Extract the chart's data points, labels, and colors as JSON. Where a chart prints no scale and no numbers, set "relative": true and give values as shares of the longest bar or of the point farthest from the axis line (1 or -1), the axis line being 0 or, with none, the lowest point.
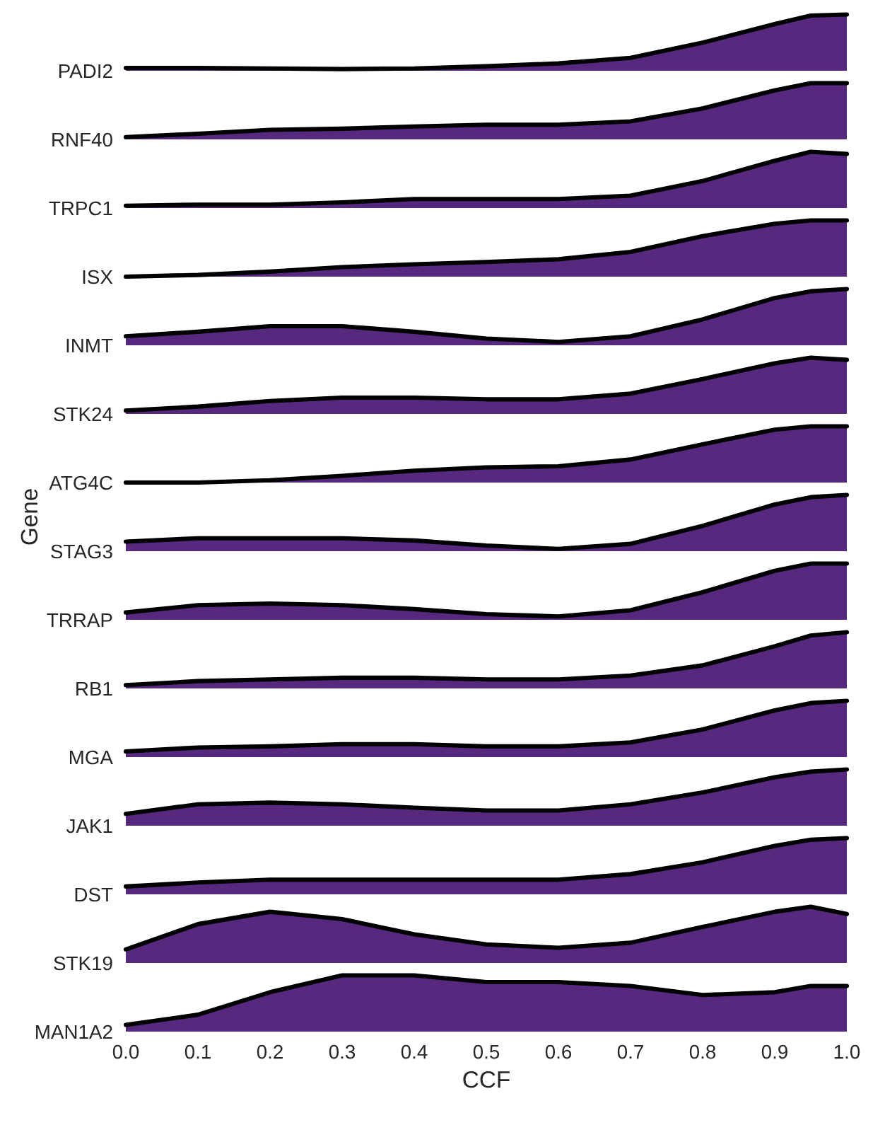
{
  "chart_data": [
    {
      "type": "area",
      "relative": true,
      "x": [
        0,
        0.1,
        0.2,
        0.3,
        0.4,
        0.5,
        0.6,
        0.7,
        0.8,
        0.9,
        0.95,
        1.0
      ],
      "xlim": [
        0,
        1
      ],
      "tick_labels": false,
      "series": [
        {
          "name": "PADI2",
          "color": "#56287e",
          "values": [
            0.05,
            0.05,
            0.04,
            0.03,
            0.04,
            0.08,
            0.13,
            0.23,
            0.5,
            0.83,
            0.98,
            1.0
          ]
        }
      ]
    },
    {
      "type": "area",
      "relative": true,
      "x": [
        0,
        0.1,
        0.2,
        0.3,
        0.4,
        0.5,
        0.6,
        0.7,
        0.8,
        0.9,
        0.95,
        1.0
      ],
      "xlim": [
        0,
        1
      ],
      "tick_labels": false,
      "series": [
        {
          "name": "RNF40",
          "color": "#56287e",
          "values": [
            0.04,
            0.1,
            0.17,
            0.19,
            0.23,
            0.26,
            0.26,
            0.32,
            0.55,
            0.87,
            1,
            1
          ]
        }
      ]
    },
    {
      "type": "area",
      "relative": true,
      "x": [
        0,
        0.1,
        0.2,
        0.3,
        0.4,
        0.5,
        0.6,
        0.7,
        0.8,
        0.9,
        0.95,
        1.0
      ],
      "xlim": [
        0,
        1
      ],
      "tick_labels": false,
      "series": [
        {
          "name": "TRPC1",
          "color": "#56287e",
          "values": [
            0.04,
            0.06,
            0.06,
            0.1,
            0.16,
            0.16,
            0.16,
            0.22,
            0.48,
            0.84,
            1,
            0.96
          ]
        }
      ]
    },
    {
      "type": "area",
      "relative": true,
      "x": [
        0,
        0.1,
        0.2,
        0.3,
        0.4,
        0.5,
        0.6,
        0.7,
        0.8,
        0.9,
        0.95,
        1.0
      ],
      "xlim": [
        0,
        1
      ],
      "tick_labels": false,
      "series": [
        {
          "name": "ISX",
          "color": "#56287e",
          "values": [
            0,
            0.03,
            0.09,
            0.17,
            0.22,
            0.26,
            0.31,
            0.44,
            0.72,
            0.94,
            1,
            1
          ]
        }
      ]
    },
    {
      "type": "area",
      "relative": true,
      "x": [
        0,
        0.1,
        0.2,
        0.3,
        0.4,
        0.5,
        0.6,
        0.7,
        0.8,
        0.9,
        0.95,
        1.0
      ],
      "xlim": [
        0,
        1
      ],
      "tick_labels": false,
      "series": [
        {
          "name": "INMT",
          "color": "#56287e",
          "values": [
            0.16,
            0.24,
            0.34,
            0.34,
            0.24,
            0.12,
            0.06,
            0.16,
            0.46,
            0.84,
            0.96,
            1
          ]
        }
      ]
    },
    {
      "type": "area",
      "relative": true,
      "x": [
        0,
        0.1,
        0.2,
        0.3,
        0.4,
        0.5,
        0.6,
        0.7,
        0.8,
        0.9,
        0.95,
        1.0
      ],
      "xlim": [
        0,
        1
      ],
      "tick_labels": false,
      "series": [
        {
          "name": "STK24",
          "color": "#56287e",
          "values": [
            0.06,
            0.13,
            0.23,
            0.29,
            0.29,
            0.26,
            0.26,
            0.36,
            0.62,
            0.9,
            1,
            0.96
          ]
        }
      ]
    },
    {
      "type": "area",
      "relative": true,
      "x": [
        0,
        0.1,
        0.2,
        0.3,
        0.4,
        0.5,
        0.6,
        0.7,
        0.8,
        0.9,
        0.95,
        1.0
      ],
      "xlim": [
        0,
        1
      ],
      "tick_labels": false,
      "series": [
        {
          "name": "ATG4C",
          "color": "#56287e",
          "values": [
            0,
            0,
            0.04,
            0.12,
            0.21,
            0.27,
            0.29,
            0.41,
            0.68,
            0.94,
            1,
            1
          ]
        }
      ]
    },
    {
      "type": "area",
      "relative": true,
      "ylabel": "Gene",
      "x": [
        0,
        0.1,
        0.2,
        0.3,
        0.4,
        0.5,
        0.6,
        0.7,
        0.8,
        0.9,
        0.95,
        1.0
      ],
      "xlim": [
        0,
        1
      ],
      "tick_labels": false,
      "series": [
        {
          "name": "STAG3",
          "color": "#56287e",
          "values": [
            0.17,
            0.23,
            0.23,
            0.23,
            0.19,
            0.1,
            0.04,
            0.13,
            0.45,
            0.83,
            0.96,
            1
          ]
        }
      ]
    },
    {
      "type": "area",
      "relative": true,
      "x": [
        0,
        0.1,
        0.2,
        0.3,
        0.4,
        0.5,
        0.6,
        0.7,
        0.8,
        0.9,
        0.95,
        1.0
      ],
      "xlim": [
        0,
        1
      ],
      "tick_labels": false,
      "series": [
        {
          "name": "TRRAP",
          "color": "#56287e",
          "values": [
            0.13,
            0.26,
            0.29,
            0.26,
            0.19,
            0.1,
            0.06,
            0.17,
            0.49,
            0.87,
            1,
            1
          ]
        }
      ]
    },
    {
      "type": "area",
      "relative": true,
      "x": [
        0,
        0.1,
        0.2,
        0.3,
        0.4,
        0.5,
        0.6,
        0.7,
        0.8,
        0.9,
        0.95,
        1.0
      ],
      "xlim": [
        0,
        1
      ],
      "tick_labels": false,
      "series": [
        {
          "name": "RB1",
          "color": "#56287e",
          "values": [
            0.06,
            0.13,
            0.16,
            0.19,
            0.19,
            0.16,
            0.16,
            0.23,
            0.41,
            0.75,
            0.94,
            1
          ]
        }
      ]
    },
    {
      "type": "area",
      "relative": true,
      "x": [
        0,
        0.1,
        0.2,
        0.3,
        0.4,
        0.5,
        0.6,
        0.7,
        0.8,
        0.9,
        0.95,
        1.0
      ],
      "xlim": [
        0,
        1
      ],
      "tick_labels": false,
      "series": [
        {
          "name": "MGA",
          "color": "#56287e",
          "values": [
            0.1,
            0.17,
            0.19,
            0.23,
            0.23,
            0.19,
            0.19,
            0.26,
            0.49,
            0.83,
            0.96,
            1
          ]
        }
      ]
    },
    {
      "type": "area",
      "relative": true,
      "x": [
        0,
        0.1,
        0.2,
        0.3,
        0.4,
        0.5,
        0.6,
        0.7,
        0.8,
        0.9,
        0.95,
        1.0
      ],
      "xlim": [
        0,
        1
      ],
      "tick_labels": false,
      "series": [
        {
          "name": "JAK1",
          "color": "#56287e",
          "values": [
            0.21,
            0.38,
            0.41,
            0.38,
            0.32,
            0.27,
            0.27,
            0.38,
            0.59,
            0.86,
            0.96,
            1
          ]
        }
      ]
    },
    {
      "type": "area",
      "relative": true,
      "x": [
        0,
        0.1,
        0.2,
        0.3,
        0.4,
        0.5,
        0.6,
        0.7,
        0.8,
        0.9,
        0.95,
        1.0
      ],
      "xlim": [
        0,
        1
      ],
      "tick_labels": false,
      "series": [
        {
          "name": "DST",
          "color": "#56287e",
          "values": [
            0.14,
            0.21,
            0.26,
            0.26,
            0.26,
            0.26,
            0.26,
            0.36,
            0.57,
            0.86,
            0.97,
            1
          ]
        }
      ]
    },
    {
      "type": "area",
      "relative": true,
      "x": [
        0,
        0.1,
        0.2,
        0.3,
        0.4,
        0.5,
        0.6,
        0.7,
        0.8,
        0.9,
        0.95,
        1.0
      ],
      "xlim": [
        0,
        1
      ],
      "tick_labels": false,
      "series": [
        {
          "name": "STK19",
          "color": "#56287e",
          "values": [
            0.24,
            0.69,
            0.91,
            0.78,
            0.51,
            0.33,
            0.27,
            0.36,
            0.64,
            0.91,
            1,
            0.87
          ]
        }
      ]
    },
    {
      "type": "area",
      "relative": true,
      "xlabel": "CCF",
      "x": [
        0,
        0.1,
        0.2,
        0.3,
        0.4,
        0.5,
        0.6,
        0.7,
        0.8,
        0.9,
        0.95,
        1.0
      ],
      "xlim": [
        0,
        1
      ],
      "xticks": [
        {
          "value": 0,
          "label": "0.0"
        },
        0.1,
        0.2,
        0.3,
        0.4,
        0.5,
        0.6,
        0.7,
        0.8,
        0.9,
        {
          "value": 1,
          "label": "1.0"
        }
      ],
      "tick_labels": "x",
      "series": [
        {
          "name": "MAN1A2",
          "color": "#56287e",
          "values": [
            0.12,
            0.3,
            0.7,
            1,
            1,
            0.88,
            0.88,
            0.81,
            0.65,
            0.7,
            0.81,
            0.81
          ]
        }
      ]
    }
  ]
}
